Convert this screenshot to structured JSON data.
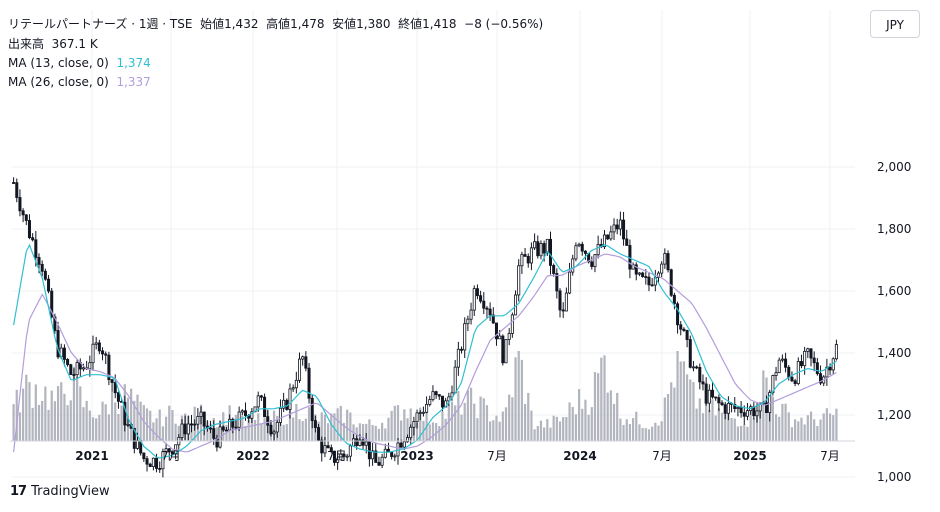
{
  "header": {
    "title": "リテールパートナーズ · 1週 · TSE",
    "open_label": "始値",
    "open": "1,432",
    "high_label": "高値",
    "high": "1,478",
    "low_label": "安値",
    "low": "1,380",
    "close_label": "終値",
    "close": "1,418",
    "change": "−8 (−0.56%)",
    "volume_label": "出来高",
    "volume": "367.1 K",
    "ma13_label": "MA (13, close, 0)",
    "ma13_value": "1,374",
    "ma26_label": "MA (26, close, 0)",
    "ma26_value": "1,337"
  },
  "currency_button": "JPY",
  "brand": {
    "logo": "17",
    "name": "TradingView"
  },
  "colors": {
    "candle": "#131722",
    "ma13": "#2fbfd3",
    "ma26": "#b39ddb",
    "volume": "#b2b5be",
    "grid": "#eef0f3"
  },
  "chart_data": {
    "type": "candlestick",
    "frequency": "weekly",
    "x_ticks": [
      "2021",
      "7月",
      "2022",
      "7月",
      "2023",
      "7月",
      "2024",
      "7月",
      "2025",
      "7月"
    ],
    "y_ticks": [
      1000,
      1200,
      1400,
      1600,
      1800,
      2000
    ],
    "ylim": [
      860,
      2070
    ],
    "series_close": [
      {
        "date": "2020-09",
        "close": 1950
      },
      {
        "date": "2020-10",
        "close": 1800
      },
      {
        "date": "2020-11",
        "close": 1680
      },
      {
        "date": "2020-12",
        "close": 1420
      },
      {
        "date": "2021-01",
        "close": 1330
      },
      {
        "date": "2021-02",
        "close": 1360
      },
      {
        "date": "2021-03",
        "close": 1440
      },
      {
        "date": "2021-04",
        "close": 1280
      },
      {
        "date": "2021-05",
        "close": 1150
      },
      {
        "date": "2021-06",
        "close": 1060
      },
      {
        "date": "2021-07",
        "close": 1050
      },
      {
        "date": "2021-08",
        "close": 1100
      },
      {
        "date": "2021-09",
        "close": 1170
      },
      {
        "date": "2021-10",
        "close": 1180
      },
      {
        "date": "2021-11",
        "close": 1120
      },
      {
        "date": "2021-12",
        "close": 1160
      },
      {
        "date": "2022-01",
        "close": 1200
      },
      {
        "date": "2022-02",
        "close": 1250
      },
      {
        "date": "2022-03",
        "close": 1150
      },
      {
        "date": "2022-04",
        "close": 1250
      },
      {
        "date": "2022-05",
        "close": 1390
      },
      {
        "date": "2022-06",
        "close": 1120
      },
      {
        "date": "2022-07",
        "close": 1060
      },
      {
        "date": "2022-08",
        "close": 1070
      },
      {
        "date": "2022-09",
        "close": 1150
      },
      {
        "date": "2022-10",
        "close": 1040
      },
      {
        "date": "2022-11",
        "close": 1070
      },
      {
        "date": "2022-12",
        "close": 1130
      },
      {
        "date": "2023-01",
        "close": 1200
      },
      {
        "date": "2023-02",
        "close": 1260
      },
      {
        "date": "2023-03",
        "close": 1230
      },
      {
        "date": "2023-04",
        "close": 1420
      },
      {
        "date": "2023-05",
        "close": 1620
      },
      {
        "date": "2023-06",
        "close": 1540
      },
      {
        "date": "2023-07",
        "close": 1380
      },
      {
        "date": "2023-08",
        "close": 1680
      },
      {
        "date": "2023-09",
        "close": 1730
      },
      {
        "date": "2023-10",
        "close": 1740
      },
      {
        "date": "2023-11",
        "close": 1500
      },
      {
        "date": "2024-01",
        "close": 1780
      },
      {
        "date": "2024-02",
        "close": 1700
      },
      {
        "date": "2024-03",
        "close": 1760
      },
      {
        "date": "2024-04",
        "close": 1820
      },
      {
        "date": "2024-05",
        "close": 1640
      },
      {
        "date": "2024-06",
        "close": 1620
      },
      {
        "date": "2024-07",
        "close": 1720
      },
      {
        "date": "2024-08",
        "close": 1520
      },
      {
        "date": "2024-09",
        "close": 1360
      },
      {
        "date": "2024-10",
        "close": 1260
      },
      {
        "date": "2024-11",
        "close": 1230
      },
      {
        "date": "2024-12",
        "close": 1220
      },
      {
        "date": "2025-01",
        "close": 1220
      },
      {
        "date": "2025-02",
        "close": 1210
      },
      {
        "date": "2025-03",
        "close": 1380
      },
      {
        "date": "2025-04",
        "close": 1320
      },
      {
        "date": "2025-05",
        "close": 1390
      },
      {
        "date": "2025-06",
        "close": 1320
      },
      {
        "date": "2025-07",
        "close": 1418
      }
    ],
    "series_ma13": [
      1490,
      1760,
      1640,
      1420,
      1310,
      1330,
      1330,
      1320,
      1180,
      1100,
      1060,
      1070,
      1100,
      1150,
      1170,
      1180,
      1190,
      1220,
      1220,
      1230,
      1280,
      1260,
      1170,
      1110,
      1090,
      1080,
      1080,
      1090,
      1120,
      1190,
      1230,
      1300,
      1480,
      1520,
      1520,
      1560,
      1640,
      1730,
      1660,
      1680,
      1730,
      1750,
      1720,
      1700,
      1680,
      1600,
      1540,
      1460,
      1340,
      1260,
      1230,
      1220,
      1240,
      1300,
      1330,
      1350,
      1340,
      1374
    ],
    "series_ma26": [
      1080,
      1500,
      1590,
      1500,
      1400,
      1350,
      1340,
      1320,
      1260,
      1180,
      1130,
      1090,
      1080,
      1100,
      1120,
      1150,
      1160,
      1170,
      1180,
      1200,
      1220,
      1240,
      1200,
      1160,
      1130,
      1110,
      1100,
      1090,
      1100,
      1130,
      1170,
      1230,
      1340,
      1440,
      1480,
      1520,
      1580,
      1650,
      1650,
      1680,
      1700,
      1720,
      1710,
      1680,
      1660,
      1640,
      1600,
      1560,
      1480,
      1390,
      1300,
      1250,
      1230,
      1250,
      1270,
      1290,
      1310,
      1337
    ],
    "volume_note": "relative weekly volume bars along bottom (unlabeled)",
    "volume": [
      0.3,
      0.5,
      0.45,
      0.35,
      0.55,
      0.3,
      0.25,
      0.4,
      0.4,
      0.25,
      0.2,
      0.25,
      0.2,
      0.25,
      0.2,
      0.25,
      0.15,
      0.2,
      0.2,
      0.25,
      0.3,
      0.2,
      0.2,
      0.25,
      0.15,
      0.15,
      0.2,
      0.3,
      0.25,
      0.2,
      0.25,
      0.35,
      0.35,
      0.25,
      0.2,
      0.75,
      0.15,
      0.15,
      0.2,
      0.35,
      0.4,
      0.75,
      0.25,
      0.2,
      0.15,
      0.25,
      0.75,
      0.4,
      0.3,
      0.25,
      0.2,
      0.2,
      0.55,
      0.3,
      0.2,
      0.2,
      0.2,
      0.25
    ]
  }
}
